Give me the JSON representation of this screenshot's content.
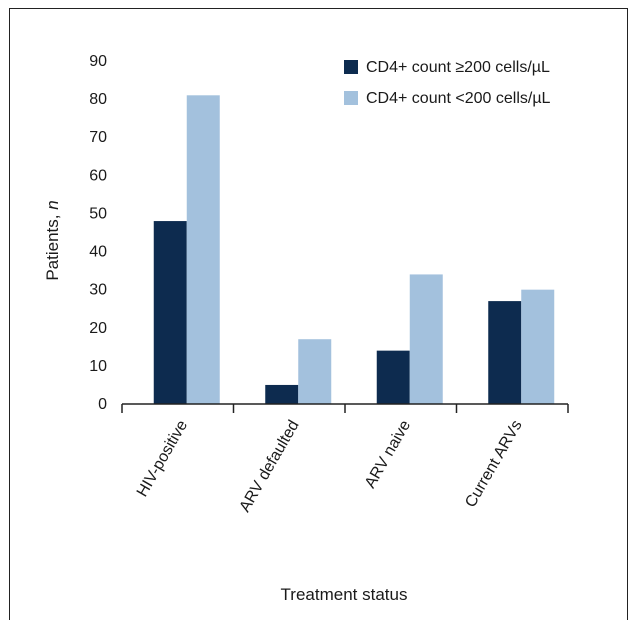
{
  "chart_data": {
    "type": "bar",
    "categories": [
      "HIV-positive",
      "ARV defaulted",
      "ARV naive",
      "Current ARVs"
    ],
    "series": [
      {
        "name": "CD4+ count ≥200 cells/µL",
        "color": "#0d2b4f",
        "values": [
          48,
          5,
          14,
          27
        ]
      },
      {
        "name": "CD4+ count <200 cells/µL",
        "color": "#a3c1dd",
        "values": [
          81,
          17,
          34,
          30
        ]
      }
    ],
    "xlabel": "Treatment status",
    "ylabel_prefix": "Patients, ",
    "ylabel_italic": "n",
    "ylim": [
      0,
      90
    ],
    "yticks": [
      0,
      10,
      20,
      30,
      40,
      50,
      60,
      70,
      80,
      90
    ],
    "grid": false,
    "legend_position": "top-right"
  }
}
